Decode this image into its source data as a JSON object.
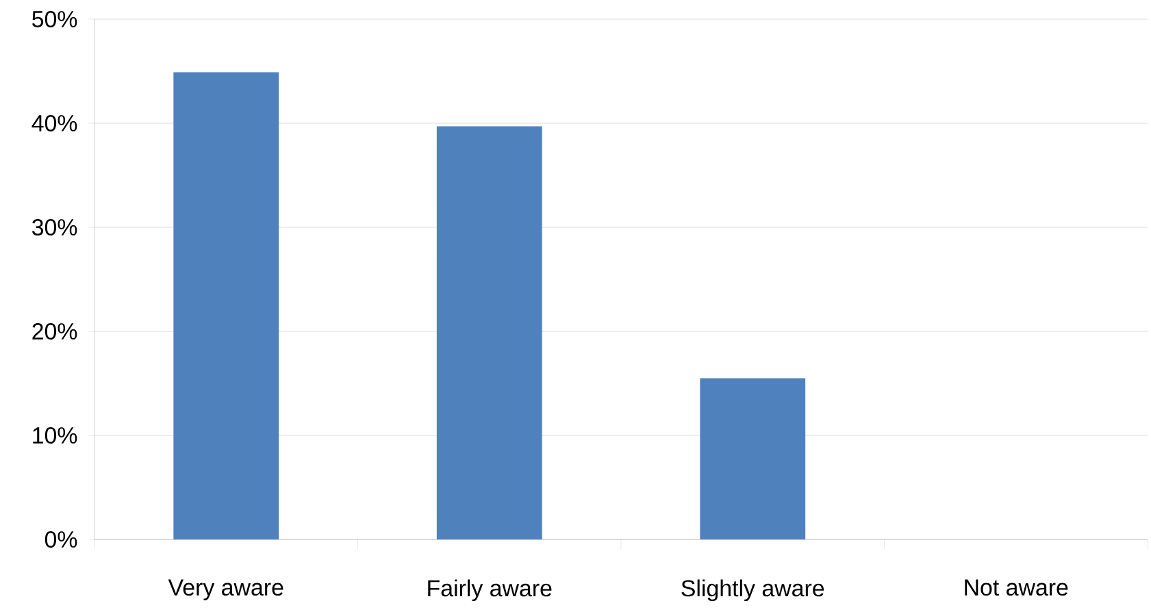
{
  "chart_data": {
    "type": "bar",
    "categories": [
      "Very aware",
      "Fairly aware",
      "Slightly aware",
      "Not aware"
    ],
    "values": [
      44.9,
      39.7,
      15.5,
      0
    ],
    "color": "#4f81bd",
    "ylim": [
      0,
      50
    ],
    "yticks": [
      {
        "value": 0,
        "label": "0%"
      },
      {
        "value": 10,
        "label": "10%"
      },
      {
        "value": 20,
        "label": "20%"
      },
      {
        "value": 30,
        "label": "30%"
      },
      {
        "value": 40,
        "label": "40%"
      },
      {
        "value": 50,
        "label": "50%"
      }
    ],
    "grid": "y"
  }
}
